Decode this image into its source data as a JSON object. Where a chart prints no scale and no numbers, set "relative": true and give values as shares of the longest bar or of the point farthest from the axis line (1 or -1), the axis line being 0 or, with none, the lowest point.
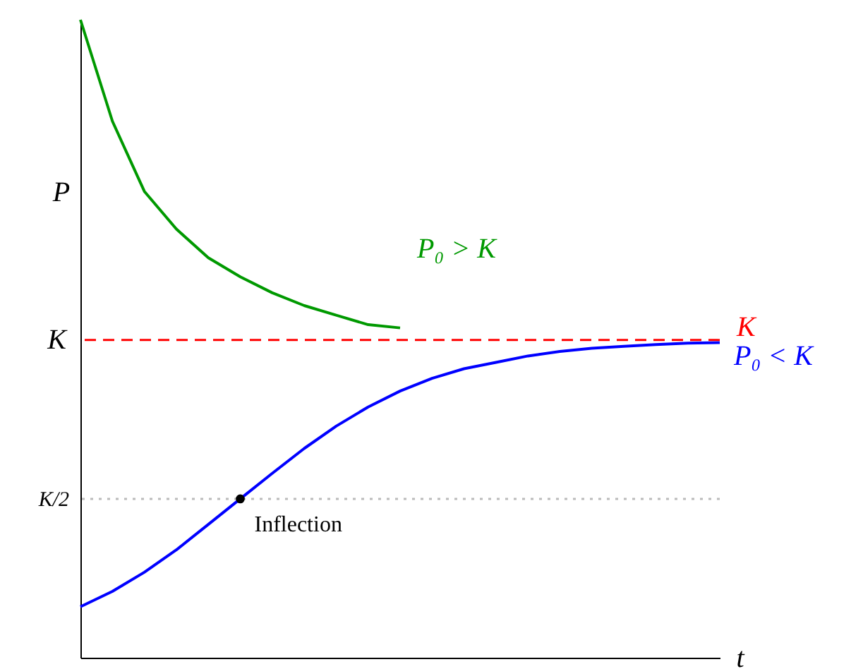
{
  "chart_data": {
    "type": "line",
    "relative": true,
    "xlabel": "t",
    "ylabel": "P",
    "categories": [
      null,
      null,
      null,
      null,
      null,
      null,
      null,
      null,
      null,
      null,
      null,
      null,
      null,
      null,
      null,
      null,
      null,
      null,
      null,
      null,
      null
    ],
    "series": [
      {
        "name": "P₀ > K",
        "color": "#009900",
        "values": [
          1,
          0.841,
          0.731,
          0.672,
          0.627,
          0.597,
          0.572,
          0.552,
          0.537,
          0.522,
          0.517,
          null,
          null,
          null,
          null,
          null,
          null,
          null,
          null,
          null,
          null
        ]
      },
      {
        "name": "P₀ < K",
        "color": "#0000ff",
        "values": [
          0.08,
          0.104,
          0.134,
          0.169,
          0.209,
          0.249,
          0.289,
          0.328,
          0.363,
          0.393,
          0.418,
          0.438,
          0.453,
          0.463,
          0.473,
          0.48,
          0.485,
          0.488,
          0.491,
          0.493,
          0.494
        ]
      }
    ],
    "ref_lines": [
      {
        "axis": "y",
        "value": 0.498,
        "label": "K",
        "color": "#ff0000",
        "line_style": "dashed"
      },
      {
        "axis": "y",
        "value": 0.249,
        "label": "K/2",
        "color": "#bbbbbb",
        "line_style": "dotted"
      }
    ],
    "annotations": [
      "K",
      {
        "text": "Inflection",
        "y": 0.249
      }
    ],
    "grid": false,
    "marker": "none",
    "line_style": "solid"
  }
}
